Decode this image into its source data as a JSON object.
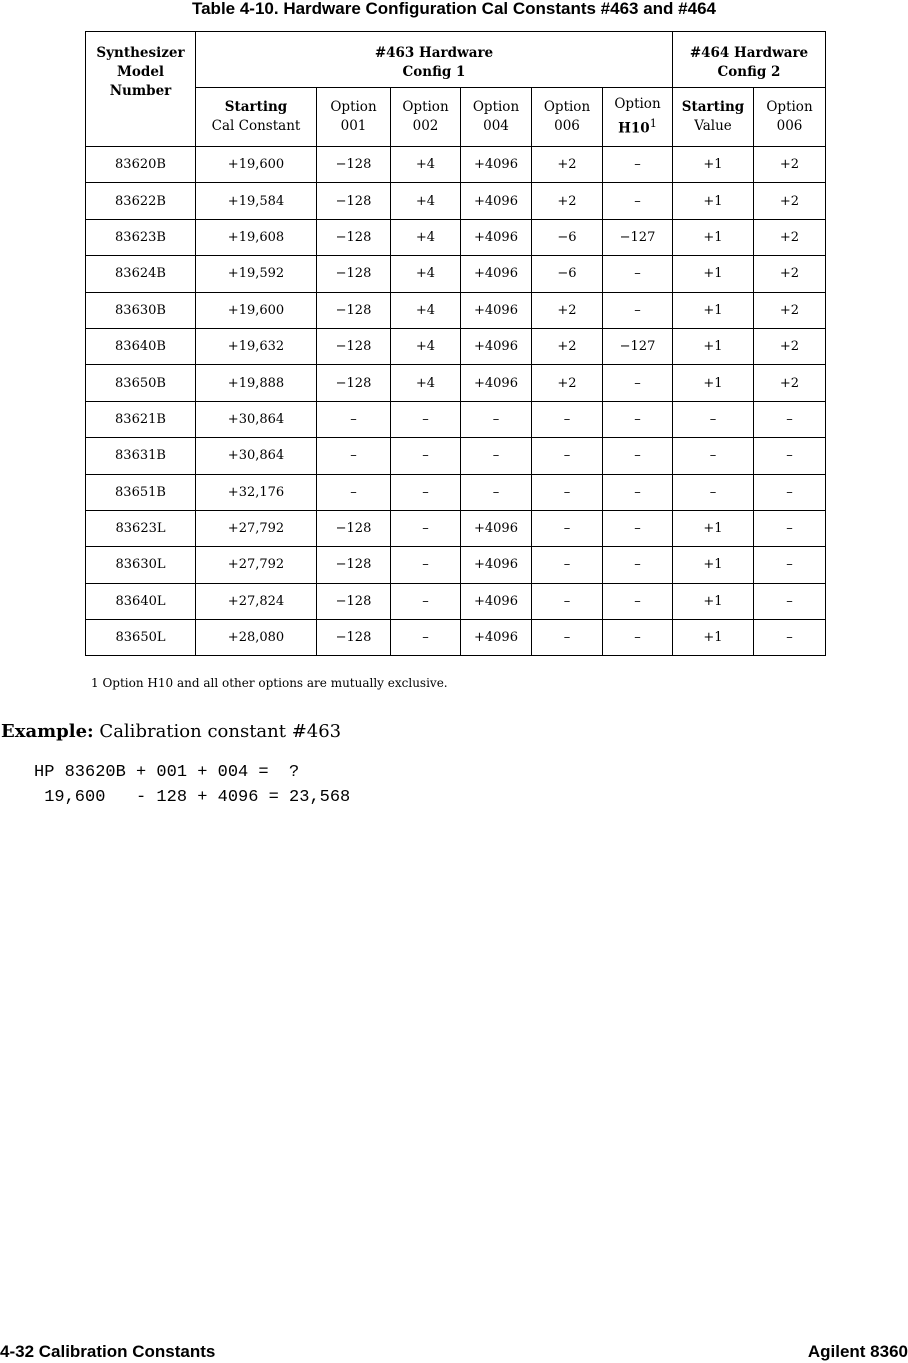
{
  "title": "Table 4-10. Hardware Configuration Cal Constants #463 and #464",
  "header": {
    "model": [
      "Synthesizer",
      "Model",
      "Number"
    ],
    "group1": [
      "#463 Hardware",
      "Config 1"
    ],
    "group2": [
      "#464 Hardware",
      "Config 2"
    ],
    "cols": [
      [
        "Starting",
        "Cal Constant"
      ],
      [
        "Option",
        "001"
      ],
      [
        "Option",
        "002"
      ],
      [
        "Option",
        "004"
      ],
      [
        "Option",
        "006"
      ],
      [
        "Option",
        "H10"
      ],
      [
        "Starting",
        "Value"
      ],
      [
        "Option",
        "006"
      ]
    ],
    "footnote_mark": "1"
  },
  "rows": [
    [
      "83620B",
      "+19,600",
      "−128",
      "+4",
      "+4096",
      "+2",
      "–",
      "+1",
      "+2"
    ],
    [
      "83622B",
      "+19,584",
      "−128",
      "+4",
      "+4096",
      "+2",
      "–",
      "+1",
      "+2"
    ],
    [
      "83623B",
      "+19,608",
      "−128",
      "+4",
      "+4096",
      "−6",
      "−127",
      "+1",
      "+2"
    ],
    [
      "83624B",
      "+19,592",
      "−128",
      "+4",
      "+4096",
      "−6",
      "–",
      "+1",
      "+2"
    ],
    [
      "83630B",
      "+19,600",
      "−128",
      "+4",
      "+4096",
      "+2",
      "–",
      "+1",
      "+2"
    ],
    [
      "83640B",
      "+19,632",
      "−128",
      "+4",
      "+4096",
      "+2",
      "−127",
      "+1",
      "+2"
    ],
    [
      "83650B",
      "+19,888",
      "−128",
      "+4",
      "+4096",
      "+2",
      "–",
      "+1",
      "+2"
    ],
    [
      "83621B",
      "+30,864",
      "–",
      "–",
      "–",
      "–",
      "–",
      "–",
      "–"
    ],
    [
      "83631B",
      "+30,864",
      "–",
      "–",
      "–",
      "–",
      "–",
      "–",
      "–"
    ],
    [
      "83651B",
      "+32,176",
      "–",
      "–",
      "–",
      "–",
      "–",
      "–",
      "–"
    ],
    [
      "83623L",
      "+27,792",
      "−128",
      "–",
      "+4096",
      "–",
      "–",
      "+1",
      "–"
    ],
    [
      "83630L",
      "+27,792",
      "−128",
      "–",
      "+4096",
      "–",
      "–",
      "+1",
      "–"
    ],
    [
      "83640L",
      "+27,824",
      "−128",
      "–",
      "+4096",
      "–",
      "–",
      "+1",
      "–"
    ],
    [
      "83650L",
      "+28,080",
      "−128",
      "–",
      "+4096",
      "–",
      "–",
      "+1",
      "–"
    ]
  ],
  "footnote": "1 Option H10 and all other options are mutually exclusive.",
  "example": {
    "label": "Example:",
    "text": "Calibration constant #463",
    "line1": "HP 83620B + 001 + 004 =  ?",
    "line2": " 19,600   - 128 + 4096 = 23,568"
  },
  "footer": {
    "left": "4-32   Calibration Constants",
    "right": "Agilent 8360"
  }
}
